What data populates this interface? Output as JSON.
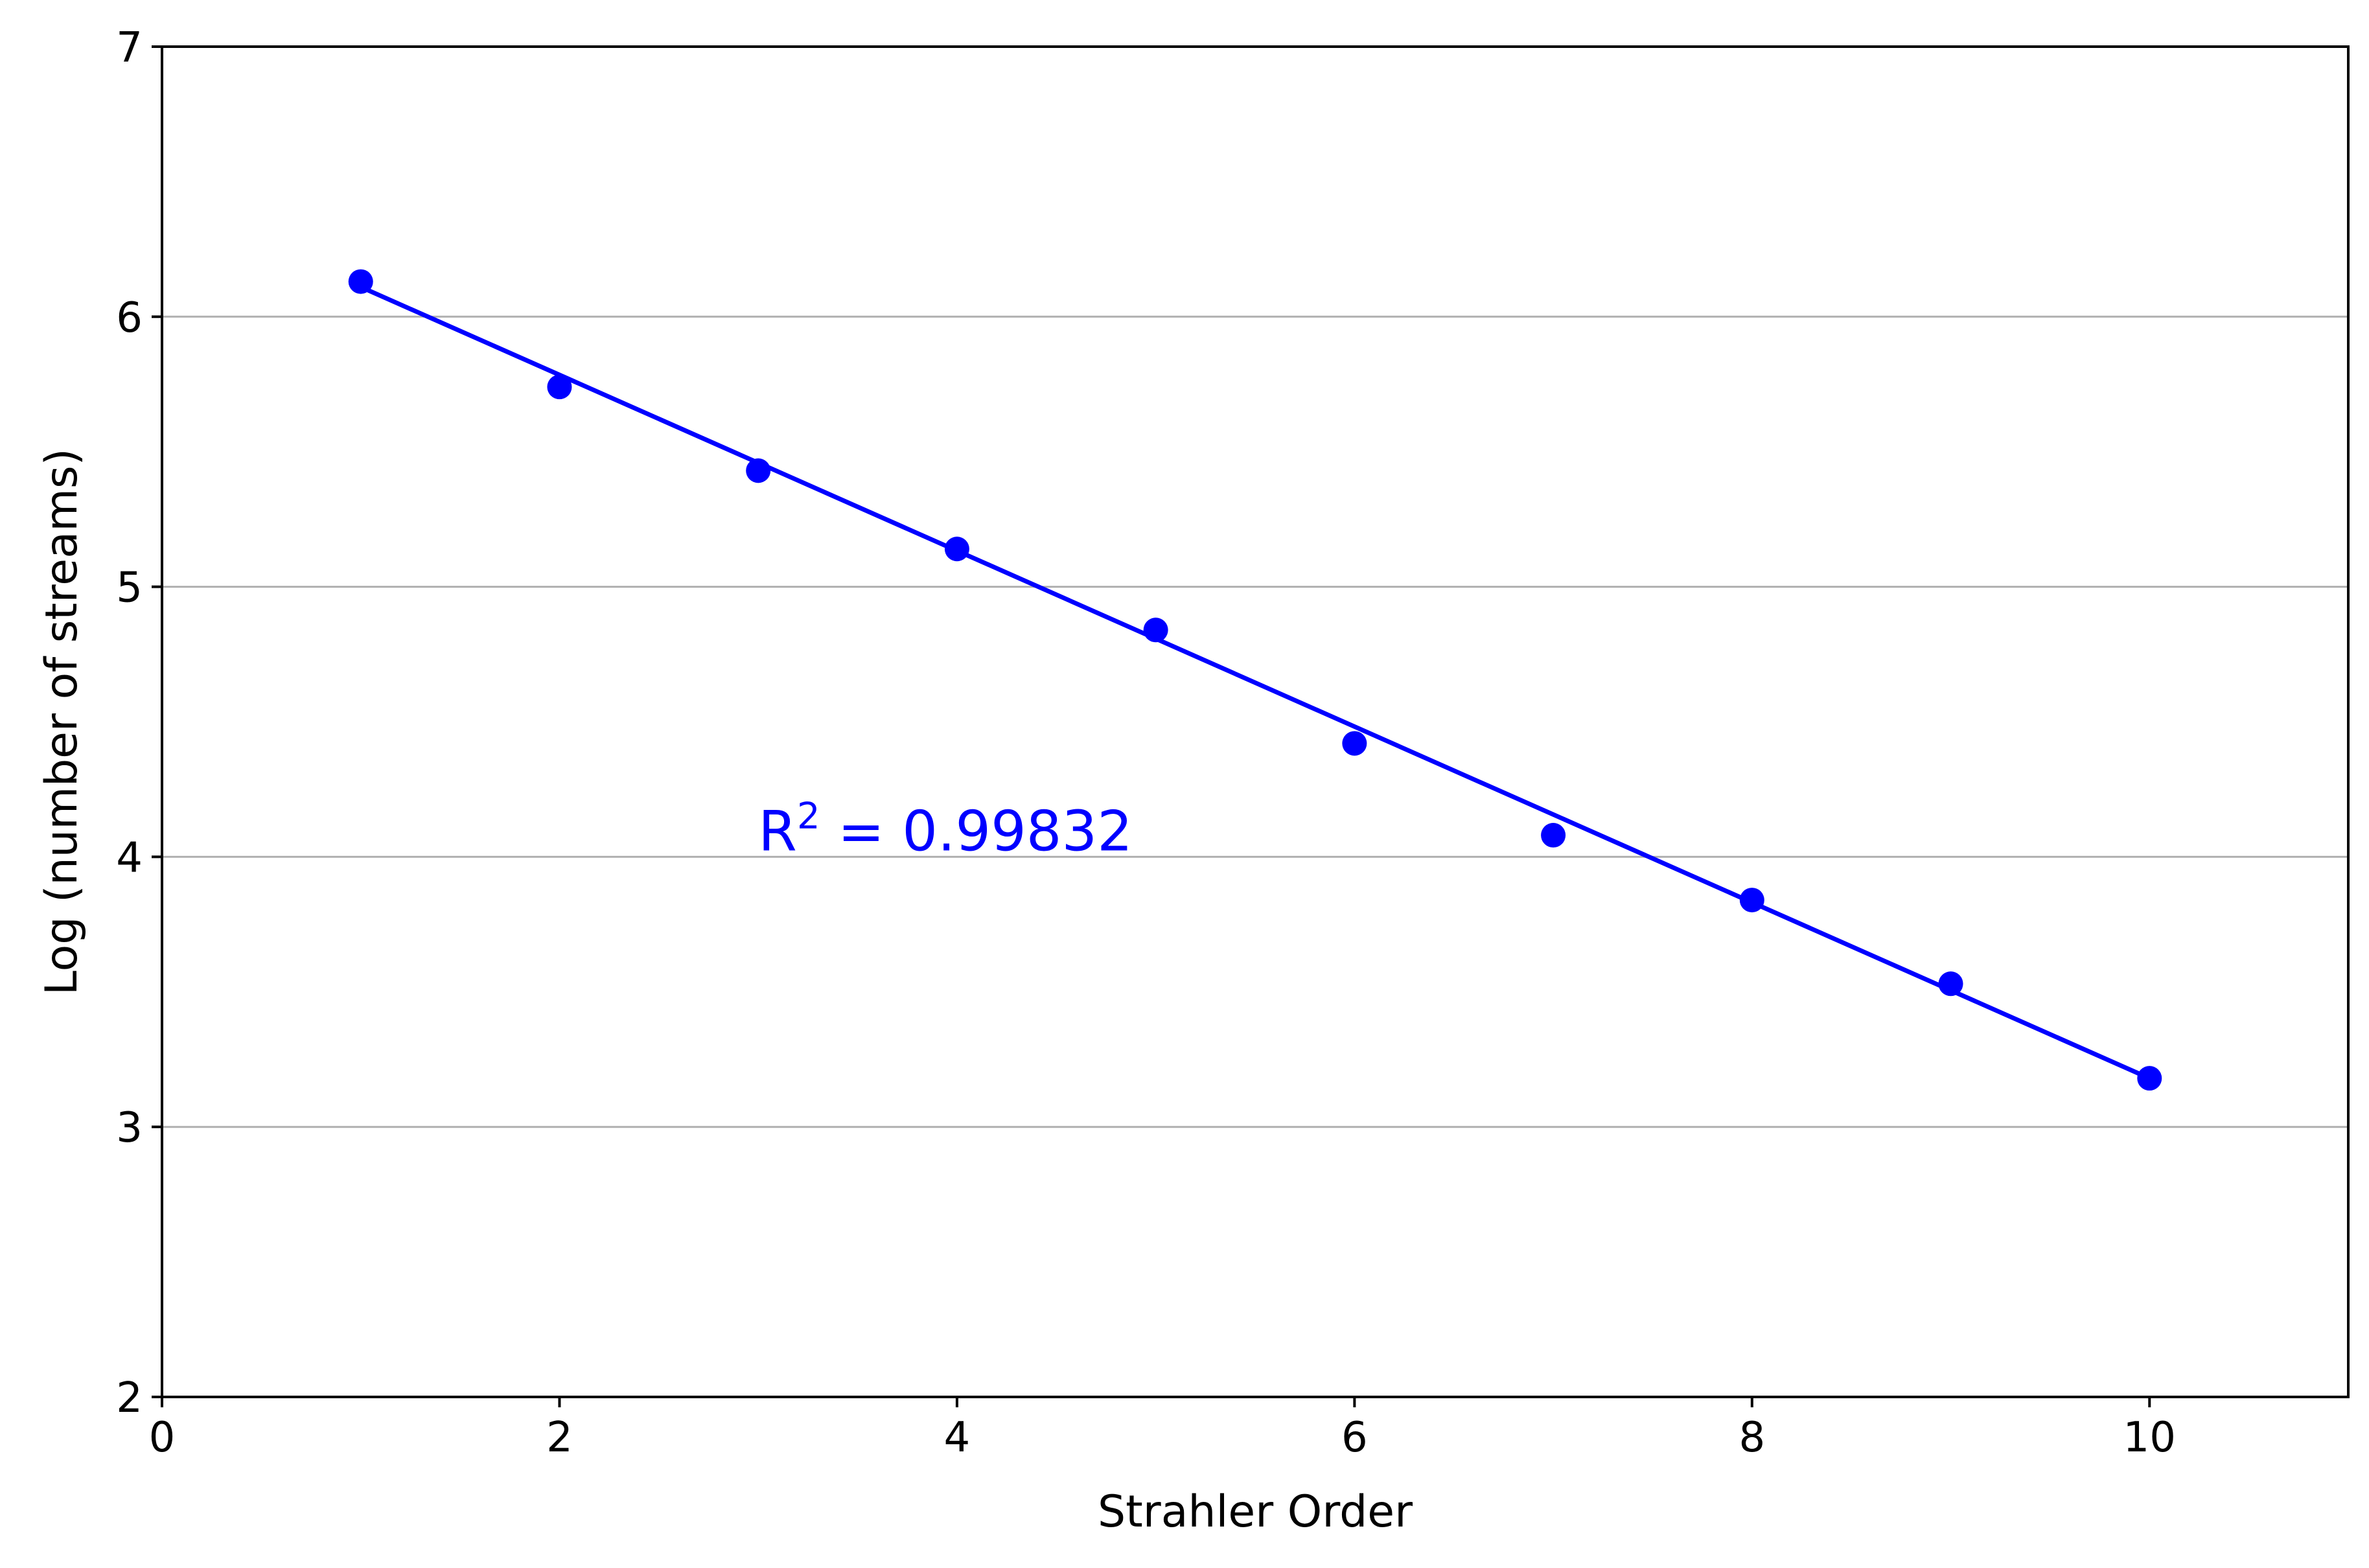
{
  "chart_data": {
    "type": "scatter",
    "title": "",
    "xlabel": "Strahler Order",
    "ylabel": "Log (number of streams)",
    "xlim": [
      0,
      11
    ],
    "ylim": [
      2,
      7
    ],
    "x_ticks": [
      0,
      2,
      4,
      6,
      8,
      10
    ],
    "y_ticks": [
      2,
      3,
      4,
      5,
      6,
      7
    ],
    "x_tick_labels": [
      "0",
      "2",
      "4",
      "6",
      "8",
      "10"
    ],
    "y_tick_labels": [
      "2",
      "3",
      "4",
      "5",
      "6",
      "7"
    ],
    "grid": "horizontal",
    "color": "#0000ff",
    "series": [
      {
        "kind": "points",
        "x": [
          1,
          2,
          3,
          4,
          5,
          6,
          7,
          8,
          9,
          10
        ],
        "y": [
          6.13,
          5.74,
          5.43,
          5.14,
          4.84,
          4.42,
          4.08,
          3.84,
          3.53,
          3.18
        ]
      },
      {
        "kind": "fit-line",
        "x": [
          1,
          10
        ],
        "y": [
          6.11,
          3.18
        ]
      }
    ],
    "annotation": {
      "x": 3,
      "y": 4,
      "prefix": "R",
      "superscript": "2",
      "suffix": " = 0.99832"
    }
  }
}
